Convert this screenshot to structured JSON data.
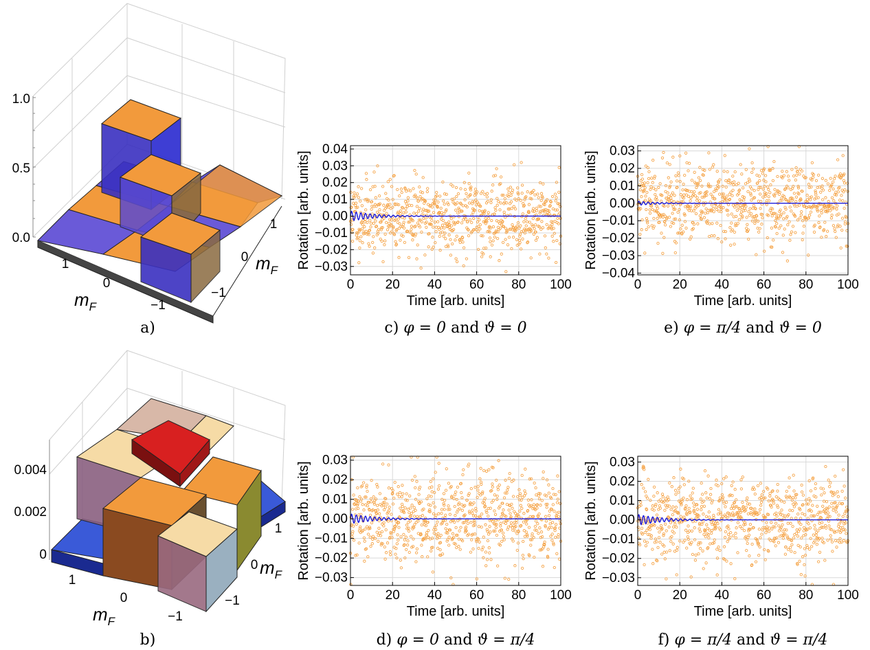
{
  "colors": {
    "scatter": "#f5a54a",
    "fit": "#1a1adc",
    "bar_orange": "#f29a3c",
    "bar_blue": "#4a4ad6",
    "bar_red": "#d82020",
    "bar_pale": "#f4d8a4"
  },
  "chart_data": [
    {
      "panel": "a",
      "type": "3d-bar",
      "caption": "a)",
      "xlabel": "m",
      "xlabel_sub": "F",
      "ylabel": "m",
      "ylabel_sub": "F",
      "categories": [
        "1",
        "0",
        "−1"
      ],
      "z_ticks": [
        "0.0",
        "0.5",
        "1.0"
      ],
      "zlim": [
        0,
        1
      ],
      "values": [
        {
          "row": "1",
          "col": "1",
          "value": 1.0,
          "color": "blue/orange"
        },
        {
          "row": "0",
          "col": "0",
          "value": 0.45,
          "color": "blue/orange"
        },
        {
          "row": "−1",
          "col": "−1",
          "value": 0.45,
          "color": "blue/orange"
        }
      ]
    },
    {
      "panel": "b",
      "type": "3d-bar",
      "caption": "b)",
      "xlabel": "m",
      "xlabel_sub": "F",
      "ylabel": "m",
      "ylabel_sub": "F",
      "categories": [
        "1",
        "0",
        "−1"
      ],
      "z_ticks": [
        "0",
        "0.002",
        "0.004"
      ],
      "zlim": [
        0,
        0.005
      ],
      "values": [
        {
          "row": "1",
          "col": "1",
          "value": 0.0004
        },
        {
          "row": "1",
          "col": "0",
          "value": 0.004
        },
        {
          "row": "1",
          "col": "−1",
          "value": 0.0045
        },
        {
          "row": "0",
          "col": "1",
          "value": 0.004
        },
        {
          "row": "0",
          "col": "0",
          "value": 0.005
        },
        {
          "row": "0",
          "col": "−1",
          "value": 0.0045
        },
        {
          "row": "−1",
          "col": "1",
          "value": 0.0045
        },
        {
          "row": "−1",
          "col": "0",
          "value": 0.0045
        },
        {
          "row": "−1",
          "col": "−1",
          "value": 0.0004
        }
      ]
    },
    {
      "panel": "c",
      "type": "scatter",
      "caption_prefix": "c)",
      "caption_phi": "φ = 0",
      "caption_and": "and",
      "caption_theta": "ϑ = 0",
      "xlabel": "Time [arb. units]",
      "ylabel": "Rotation [arb. units]",
      "xlim": [
        0,
        100
      ],
      "ylim": [
        -0.035,
        0.042
      ],
      "xticks": [
        0,
        20,
        40,
        60,
        80,
        100
      ],
      "yticks": [
        -0.03,
        -0.02,
        -0.01,
        0.0,
        0.01,
        0.02,
        0.03,
        0.04
      ],
      "ytick_labels": [
        "−0.03",
        "−0.02",
        "−0.01",
        "0.00",
        "0.01",
        "0.02",
        "0.03",
        "0.04"
      ],
      "noise_sigma": 0.011,
      "fit": {
        "amplitude": 0.003,
        "decay": 12,
        "period": 2.2,
        "offset": 0.0
      },
      "grid": true
    },
    {
      "panel": "e",
      "type": "scatter",
      "caption_prefix": "e)",
      "caption_phi": "φ = π/4",
      "caption_and": "and",
      "caption_theta": "ϑ = 0",
      "xlabel": "Time [arb. units]",
      "ylabel": "Rotation [arb. units]",
      "xlim": [
        0,
        100
      ],
      "ylim": [
        -0.041,
        0.033
      ],
      "xticks": [
        0,
        20,
        40,
        60,
        80,
        100
      ],
      "yticks": [
        -0.04,
        -0.03,
        -0.02,
        -0.01,
        0.0,
        0.01,
        0.02,
        0.03
      ],
      "ytick_labels": [
        "−0.04",
        "−0.03",
        "−0.02",
        "−0.01",
        "0.00",
        "0.01",
        "0.02",
        "0.03"
      ],
      "noise_sigma": 0.011,
      "fit": {
        "amplitude": 0.0012,
        "decay": 10,
        "period": 2.2,
        "offset": 0.0
      },
      "grid": true
    },
    {
      "panel": "d",
      "type": "scatter",
      "caption_prefix": "d)",
      "caption_phi": "φ = 0",
      "caption_and": "and",
      "caption_theta": "ϑ = π/4",
      "xlabel": "Time [arb. units]",
      "ylabel": "Rotation [arb. units]",
      "xlim": [
        0,
        100
      ],
      "ylim": [
        -0.034,
        0.032
      ],
      "xticks": [
        0,
        20,
        40,
        60,
        80,
        100
      ],
      "yticks": [
        -0.03,
        -0.02,
        -0.01,
        0.0,
        0.01,
        0.02,
        0.03
      ],
      "ytick_labels": [
        "−0.03",
        "−0.02",
        "−0.01",
        "0.00",
        "0.01",
        "0.02",
        "0.03"
      ],
      "noise_sigma": 0.011,
      "fit": {
        "amplitude": 0.0025,
        "decay": 12,
        "period": 2.2,
        "offset": 0.0
      },
      "grid": true
    },
    {
      "panel": "f",
      "type": "scatter",
      "caption_prefix": "f)",
      "caption_phi": "φ = π/4",
      "caption_and": "and",
      "caption_theta": "ϑ = π/4",
      "xlabel": "Time [arb. units]",
      "ylabel": "Rotation [arb. units]",
      "xlim": [
        0,
        100
      ],
      "ylim": [
        -0.034,
        0.033
      ],
      "xticks": [
        0,
        20,
        40,
        60,
        80,
        100
      ],
      "yticks": [
        -0.03,
        -0.02,
        -0.01,
        0.0,
        0.01,
        0.02,
        0.03
      ],
      "ytick_labels": [
        "−0.03",
        "−0.02",
        "−0.01",
        "0.00",
        "0.01",
        "0.02",
        "0.03"
      ],
      "noise_sigma": 0.011,
      "fit": {
        "amplitude": 0.0028,
        "decay": 12,
        "period": 2.2,
        "offset": 0.0
      },
      "grid": true
    }
  ]
}
